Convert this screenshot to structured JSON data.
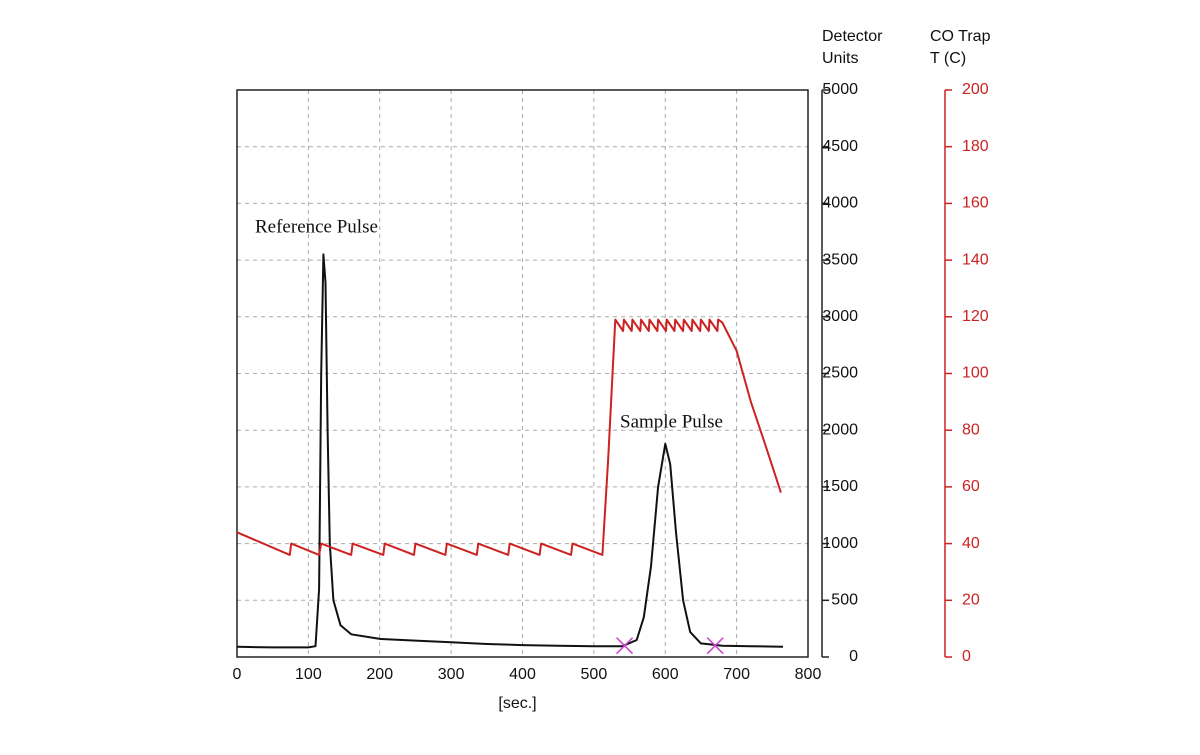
{
  "chart_data": {
    "type": "line",
    "xlabel": "[sec.]",
    "ylabel": [
      "Detector",
      "Units"
    ],
    "y2label": [
      "CO Trap",
      "T (C)"
    ],
    "xlim": [
      0,
      800
    ],
    "xticks": [
      0,
      100,
      200,
      300,
      400,
      500,
      600,
      700,
      800
    ],
    "ylim": [
      0,
      5000
    ],
    "yticks": [
      0,
      500,
      1000,
      1500,
      2000,
      2500,
      3000,
      3500,
      4000,
      4500,
      5000
    ],
    "y2lim": [
      0,
      200
    ],
    "y2ticks": [
      0,
      20,
      40,
      60,
      80,
      100,
      120,
      140,
      160,
      180,
      200
    ],
    "y2color": "#cc2222",
    "grid": true,
    "annotations": [
      "Reference Pulse",
      "Sample Pulse"
    ],
    "series": [
      {
        "color": "#111111",
        "x": [
          0,
          50,
          100,
          110,
          115,
          118,
          121,
          124,
          127,
          130,
          135,
          145,
          160,
          200,
          250,
          300,
          350,
          400,
          450,
          500,
          540,
          560,
          570,
          580,
          590,
          600,
          607,
          615,
          625,
          635,
          650,
          680,
          720,
          765
        ],
        "values": [
          90,
          85,
          85,
          95,
          600,
          2500,
          3550,
          3300,
          2000,
          1000,
          500,
          280,
          200,
          160,
          145,
          130,
          115,
          105,
          100,
          95,
          95,
          150,
          350,
          800,
          1500,
          1880,
          1700,
          1100,
          500,
          220,
          120,
          100,
          95,
          90
        ]
      },
      {
        "color": "#cc2222",
        "axis": "y2",
        "x": [
          0,
          74,
          76,
          115,
          118,
          160,
          162,
          205,
          207,
          248,
          250,
          292,
          294,
          336,
          338,
          380,
          382,
          424,
          426,
          468,
          470,
          512,
          520,
          530,
          541,
          542,
          553,
          554,
          565,
          566,
          577,
          578,
          589,
          590,
          601,
          602,
          613,
          614,
          625,
          626,
          637,
          638,
          649,
          650,
          661,
          662,
          673,
          674,
          680,
          700,
          720,
          740,
          762
        ],
        "values": [
          44,
          36,
          40,
          36,
          40,
          36,
          40,
          36,
          40,
          36,
          40,
          36,
          40,
          36,
          40,
          36,
          40,
          36,
          40,
          36,
          40,
          36,
          70,
          119,
          115,
          119,
          115,
          119,
          115,
          119,
          115,
          119,
          115,
          119,
          115,
          119,
          115,
          119,
          115,
          119,
          115,
          119,
          115,
          119,
          115,
          119,
          115,
          119,
          118,
          108,
          90,
          75,
          58
        ]
      }
    ],
    "markers": {
      "color": "#cc44cc",
      "x": [
        543,
        670
      ],
      "values": [
        100,
        100
      ]
    }
  }
}
